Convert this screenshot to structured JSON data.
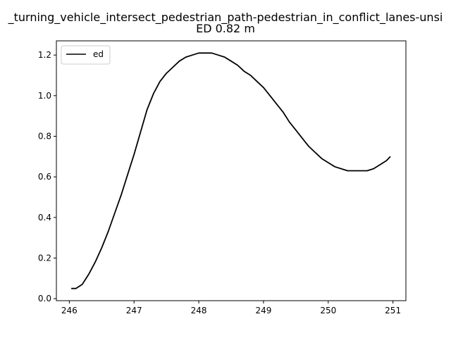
{
  "chart_data": {
    "type": "line",
    "title": "_turning_vehicle_intersect_pedestrian_path-pedestrian_in_conflict_lanes-unsi",
    "subtitle": "ED 0.82 m",
    "xlabel": "",
    "ylabel": "",
    "xlim": [
      245.8,
      251.2
    ],
    "ylim": [
      -0.01,
      1.27
    ],
    "xticks": [
      246,
      247,
      248,
      249,
      250,
      251
    ],
    "yticks": [
      0.0,
      0.2,
      0.4,
      0.6,
      0.8,
      1.0,
      1.2
    ],
    "ytick_labels": [
      "0.0",
      "0.2",
      "0.4",
      "0.6",
      "0.8",
      "1.0",
      "1.2"
    ],
    "grid": false,
    "legend": {
      "placement": "top-left",
      "entries": [
        "ed"
      ]
    },
    "series": [
      {
        "name": "ed",
        "color": "#000000",
        "x": [
          246.03,
          246.1,
          246.2,
          246.3,
          246.4,
          246.5,
          246.6,
          246.7,
          246.8,
          246.9,
          247.0,
          247.1,
          247.2,
          247.3,
          247.4,
          247.5,
          247.6,
          247.7,
          247.8,
          247.9,
          248.0,
          248.1,
          248.2,
          248.3,
          248.4,
          248.5,
          248.6,
          248.7,
          248.8,
          248.9,
          249.0,
          249.1,
          249.2,
          249.3,
          249.4,
          249.5,
          249.6,
          249.7,
          249.8,
          249.9,
          250.0,
          250.1,
          250.2,
          250.3,
          250.4,
          250.5,
          250.6,
          250.7,
          250.8,
          250.9,
          250.96
        ],
        "y": [
          0.05,
          0.05,
          0.07,
          0.12,
          0.18,
          0.25,
          0.33,
          0.42,
          0.51,
          0.61,
          0.71,
          0.82,
          0.93,
          1.01,
          1.07,
          1.11,
          1.14,
          1.17,
          1.19,
          1.2,
          1.21,
          1.21,
          1.21,
          1.2,
          1.19,
          1.17,
          1.15,
          1.12,
          1.1,
          1.07,
          1.04,
          1.0,
          0.96,
          0.92,
          0.87,
          0.83,
          0.79,
          0.75,
          0.72,
          0.69,
          0.67,
          0.65,
          0.64,
          0.63,
          0.63,
          0.63,
          0.63,
          0.64,
          0.66,
          0.68,
          0.7
        ]
      }
    ]
  }
}
